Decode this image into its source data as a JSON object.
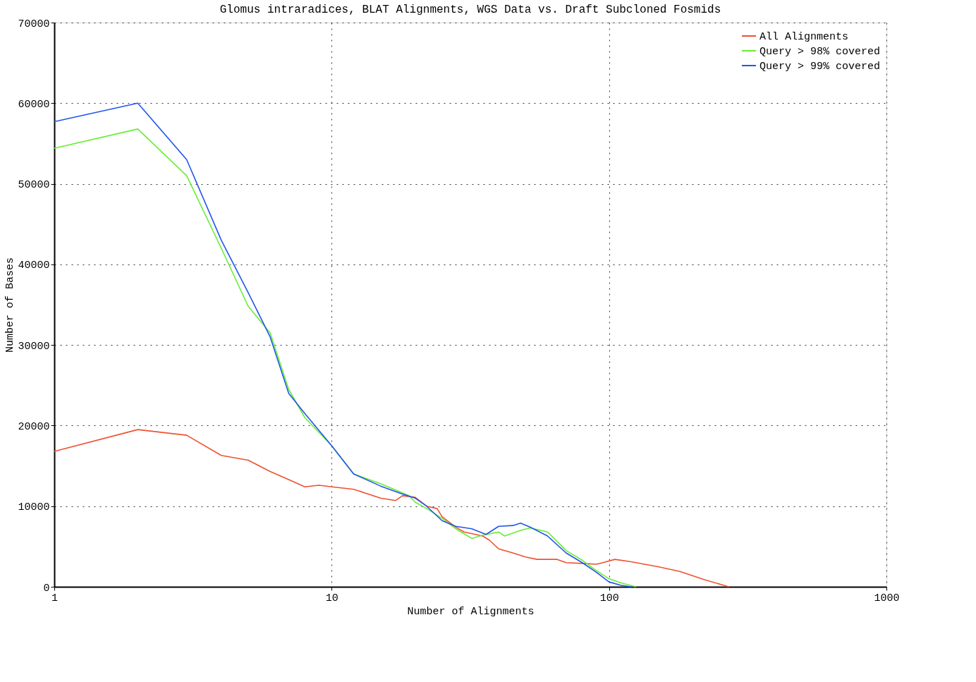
{
  "chart_data": {
    "type": "line",
    "title": "Glomus intraradices, BLAT Alignments, WGS Data vs. Draft Subcloned Fosmids",
    "xlabel": "Number of Alignments",
    "ylabel": "Number of Bases",
    "log": "x",
    "xlim": [
      1,
      1000
    ],
    "xticks": [
      1,
      10,
      100,
      1000
    ],
    "ylim": [
      0,
      70000
    ],
    "yticks": [
      0,
      10000,
      20000,
      30000,
      40000,
      50000,
      60000,
      70000
    ],
    "grid": true,
    "legend": "top right",
    "line_style": "solid",
    "marker": "none",
    "series": [
      {
        "name": "All Alignments",
        "color": "#f05030",
        "x": [
          1,
          2,
          3,
          4,
          5,
          6,
          7,
          8,
          9,
          10,
          12,
          15,
          17,
          18,
          20,
          22,
          24,
          25,
          28,
          30,
          35,
          37,
          40,
          45,
          50,
          55,
          65,
          70,
          80,
          90,
          95,
          105,
          120,
          150,
          180,
          220,
          270
        ],
        "values": [
          16800,
          19500,
          18800,
          16300,
          15700,
          14300,
          13300,
          12400,
          12600,
          12400,
          12100,
          11000,
          10700,
          11300,
          11100,
          10000,
          9700,
          8700,
          7400,
          6800,
          6300,
          5800,
          4700,
          4200,
          3700,
          3400,
          3400,
          3000,
          2900,
          2800,
          3000,
          3400,
          3100,
          2500,
          1900,
          900,
          0
        ]
      },
      {
        "name": "Query > 98% covered",
        "color": "#66ee33",
        "x": [
          1,
          2,
          3,
          4,
          5,
          6,
          7,
          8,
          10,
          12,
          15,
          17,
          19,
          20,
          22,
          25,
          28,
          32,
          35,
          40,
          42,
          48,
          52,
          60,
          70,
          80,
          90,
          100,
          110,
          125
        ],
        "values": [
          54400,
          56800,
          51000,
          42000,
          34800,
          31500,
          24500,
          21000,
          17500,
          14000,
          12800,
          12000,
          11300,
          10500,
          9700,
          8500,
          7200,
          6000,
          6400,
          6800,
          6300,
          7000,
          7300,
          6800,
          4500,
          3300,
          2000,
          1000,
          500,
          0
        ]
      },
      {
        "name": "Query > 99% covered",
        "color": "#2255ee",
        "x": [
          1,
          2,
          3,
          4,
          5,
          6,
          7,
          8,
          10,
          12,
          15,
          18,
          20,
          22,
          25,
          28,
          32,
          36,
          40,
          45,
          48,
          52,
          60,
          70,
          80,
          90,
          100,
          110,
          120
        ],
        "values": [
          57700,
          60000,
          53000,
          43000,
          36500,
          31000,
          24000,
          21500,
          17500,
          14000,
          12500,
          11500,
          11000,
          10000,
          8200,
          7500,
          7200,
          6500,
          7500,
          7600,
          7900,
          7400,
          6300,
          4200,
          3000,
          1800,
          600,
          200,
          0
        ]
      }
    ]
  }
}
